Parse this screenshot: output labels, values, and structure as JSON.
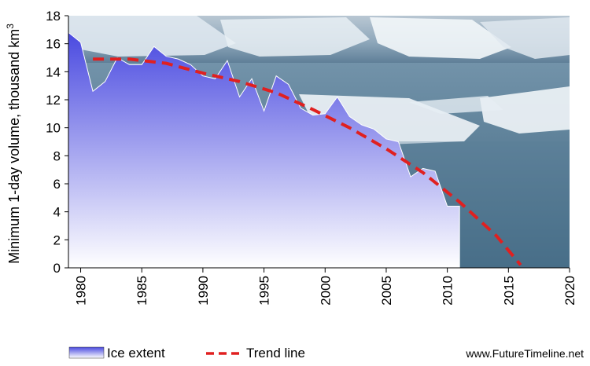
{
  "chart_data": {
    "type": "area",
    "ylabel": "Minimum 1-day volume, thousand km",
    "ylabel_superscript": "3",
    "xlim": [
      1979,
      2020
    ],
    "ylim": [
      0,
      18
    ],
    "x_ticks": [
      1980,
      1985,
      1990,
      1995,
      2000,
      2005,
      2010,
      2015,
      2020
    ],
    "y_ticks": [
      0,
      2,
      4,
      6,
      8,
      10,
      12,
      14,
      16,
      18
    ],
    "grid": false,
    "legend_position": "bottom-left",
    "background_image": "arctic sea ice and icebergs photo",
    "series": [
      {
        "name": "Ice extent",
        "kind": "area",
        "color": "#4a4ae0",
        "x": [
          1979,
          1980,
          1981,
          1982,
          1983,
          1984,
          1985,
          1986,
          1987,
          1988,
          1989,
          1990,
          1991,
          1992,
          1993,
          1994,
          1995,
          1996,
          1997,
          1998,
          1999,
          2000,
          2001,
          2002,
          2003,
          2004,
          2005,
          2006,
          2007,
          2008,
          2009,
          2010,
          2011
        ],
        "values": [
          16.8,
          16.1,
          12.6,
          13.3,
          15.0,
          14.5,
          14.5,
          15.8,
          15.1,
          14.9,
          14.5,
          13.7,
          13.5,
          14.8,
          12.2,
          13.5,
          11.2,
          13.7,
          13.1,
          11.4,
          10.9,
          11.0,
          12.2,
          10.8,
          10.2,
          9.9,
          9.2,
          9.0,
          6.5,
          7.1,
          6.9,
          4.4,
          4.4
        ]
      },
      {
        "name": "Trend line",
        "kind": "line",
        "style": "dashed",
        "color": "#e02020",
        "x": [
          1981,
          1984,
          1987,
          1990,
          1993,
          1996,
          1999,
          2002,
          2005,
          2008,
          2011,
          2014,
          2016
        ],
        "values": [
          14.9,
          14.9,
          14.6,
          13.9,
          13.3,
          12.5,
          11.3,
          10.0,
          8.5,
          6.8,
          4.7,
          2.3,
          0.2
        ]
      }
    ]
  },
  "legend": {
    "ice_label": "Ice extent",
    "trend_label": "Trend line"
  },
  "credit": "www.FutureTimeline.net",
  "colors": {
    "area_top": "#4a4ae0",
    "area_bottom": "#ffffff",
    "trend": "#e02020"
  }
}
